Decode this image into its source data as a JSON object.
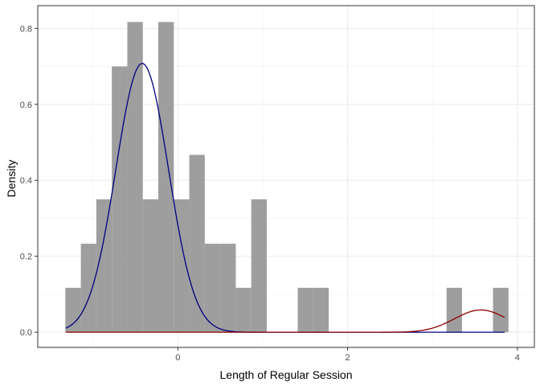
{
  "chart_data": {
    "type": "histogram",
    "xlabel": "Length of Regular Session",
    "ylabel": "Density",
    "xlim": [
      -1.65,
      4.2
    ],
    "ylim": [
      -0.04,
      0.86
    ],
    "x_ticks": [
      0,
      2,
      4
    ],
    "x_tick_labels": [
      "0",
      "2",
      "4"
    ],
    "y_ticks": [
      0.0,
      0.2,
      0.4,
      0.6,
      0.8
    ],
    "y_tick_labels": [
      "0.0",
      "0.2",
      "0.4",
      "0.6",
      "0.8"
    ],
    "grid": true,
    "theme": "bw",
    "bin_width": 0.1825,
    "bins": [
      {
        "x0": -1.325,
        "x1": -1.1425,
        "density": 0.117
      },
      {
        "x0": -1.1425,
        "x1": -0.96,
        "density": 0.233
      },
      {
        "x0": -0.96,
        "x1": -0.7775,
        "density": 0.35
      },
      {
        "x0": -0.7775,
        "x1": -0.595,
        "density": 0.7
      },
      {
        "x0": -0.595,
        "x1": -0.4125,
        "density": 0.817
      },
      {
        "x0": -0.4125,
        "x1": -0.23,
        "density": 0.35
      },
      {
        "x0": -0.23,
        "x1": -0.0475,
        "density": 0.817
      },
      {
        "x0": -0.0475,
        "x1": 0.135,
        "density": 0.35
      },
      {
        "x0": 0.135,
        "x1": 0.3175,
        "density": 0.467
      },
      {
        "x0": 0.3175,
        "x1": 0.5,
        "density": 0.233
      },
      {
        "x0": 0.5,
        "x1": 0.6825,
        "density": 0.233
      },
      {
        "x0": 0.6825,
        "x1": 0.865,
        "density": 0.117
      },
      {
        "x0": 0.865,
        "x1": 1.0475,
        "density": 0.35
      },
      {
        "x0": 1.0475,
        "x1": 1.23,
        "density": 0
      },
      {
        "x0": 1.23,
        "x1": 1.4125,
        "density": 0
      },
      {
        "x0": 1.4125,
        "x1": 1.595,
        "density": 0.117
      },
      {
        "x0": 1.595,
        "x1": 1.7775,
        "density": 0.117
      },
      {
        "x0": 1.7775,
        "x1": 3.0,
        "density": 0
      },
      {
        "x0": 3.0,
        "x1": 3.165,
        "density": 0
      },
      {
        "x0": 3.165,
        "x1": 3.3475,
        "density": 0.117
      },
      {
        "x0": 3.3475,
        "x1": 3.53,
        "density": 0
      },
      {
        "x0": 3.53,
        "x1": 3.7125,
        "density": 0
      },
      {
        "x0": 3.7125,
        "x1": 3.895,
        "density": 0.117
      }
    ],
    "bar_color": "#9e9e9e",
    "curves": [
      {
        "color": "#000080",
        "weight": 0.55,
        "mean": -0.42,
        "sd": 0.31,
        "x_range": [
          -1.32,
          3.85
        ]
      },
      {
        "color": "#8b0000",
        "weight": 0.0455,
        "mean": 3.57,
        "sd": 0.31,
        "x_range": [
          -1.32,
          3.85
        ]
      }
    ]
  }
}
